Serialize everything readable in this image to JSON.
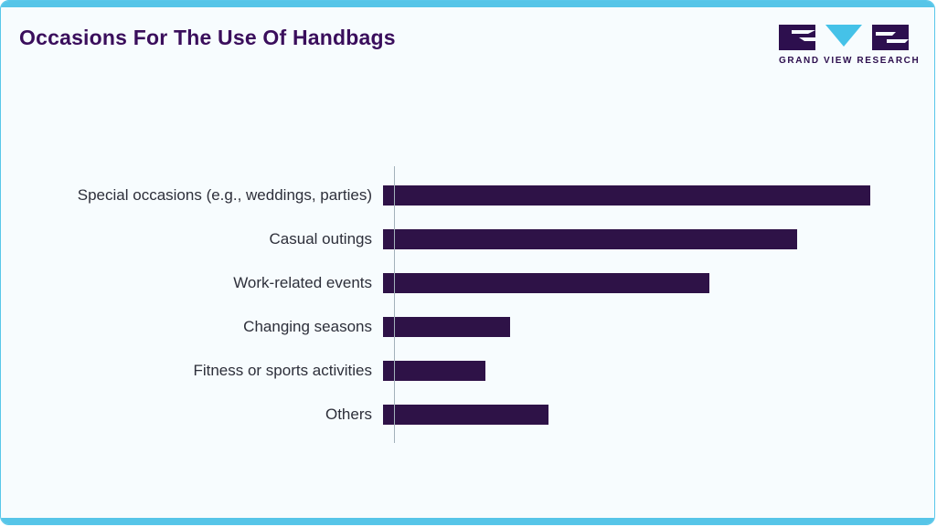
{
  "header": {
    "title": "Occasions For The Use Of Handbags",
    "brand_name": "GRAND VIEW RESEARCH"
  },
  "colors": {
    "accent_cyan": "#56c5e8",
    "bar_purple": "#2e1247",
    "title_purple": "#3a0e5c",
    "background": "#f7fcfe",
    "border": "#59c7ea",
    "axis_gray": "#a3b2bb"
  },
  "chart_data": {
    "type": "bar",
    "orientation": "horizontal",
    "title": "Occasions For The Use Of Handbags",
    "categories": [
      "Special occasions (e.g., weddings, parties)",
      "Casual outings",
      "Work-related events",
      "Changing seasons",
      "Fitness or sports activities",
      "Others"
    ],
    "values": [
      100,
      85,
      67,
      26,
      21,
      34
    ],
    "value_note": "relative bar lengths, % of longest bar (no numeric axis shown)",
    "xlabel": "",
    "ylabel": "",
    "xlim": [
      0,
      100
    ],
    "grid": false,
    "legend": false
  }
}
